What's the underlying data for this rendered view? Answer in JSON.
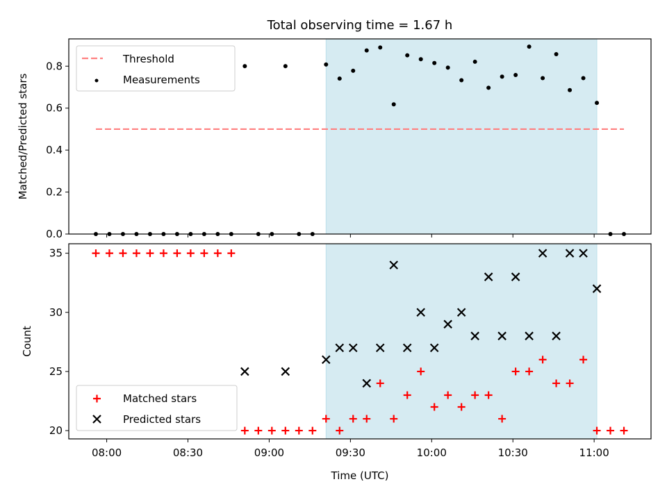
{
  "chart_data": [
    {
      "type": "scatter",
      "title": "Total observing time = 1.67 h",
      "xlabel": "",
      "ylabel": "Matched/Predicted stars",
      "ylim": [
        0,
        0.93
      ],
      "yticks": [
        "0.0",
        "0.2",
        "0.4",
        "0.6",
        "0.8"
      ],
      "shaded_span": [
        "09:21",
        "11:01"
      ],
      "threshold": {
        "name": "Threshold",
        "value": 0.5,
        "x_range": [
          "07:56",
          "11:11"
        ],
        "color": "#ff7f7f"
      },
      "series": [
        {
          "name": "Measurements",
          "color": "#000000",
          "marker": "dot",
          "x": [
            "07:56",
            "08:01",
            "08:06",
            "08:11",
            "08:16",
            "08:21",
            "08:26",
            "08:31",
            "08:36",
            "08:41",
            "08:46",
            "08:51",
            "08:56",
            "09:01",
            "09:06",
            "09:11",
            "09:16",
            "09:21",
            "09:26",
            "09:31",
            "09:36",
            "09:41",
            "09:46",
            "09:51",
            "09:56",
            "10:01",
            "10:06",
            "10:11",
            "10:16",
            "10:21",
            "10:26",
            "10:31",
            "10:36",
            "10:41",
            "10:46",
            "10:51",
            "10:56",
            "11:01",
            "11:06",
            "11:11"
          ],
          "y": [
            0,
            0,
            0,
            0,
            0,
            0,
            0,
            0,
            0,
            0,
            0,
            0.8,
            0,
            0,
            0.8,
            0,
            0,
            0.808,
            0.741,
            0.778,
            0.875,
            0.889,
            0.618,
            0.852,
            0.833,
            0.815,
            0.793,
            0.733,
            0.821,
            0.697,
            0.75,
            0.758,
            0.893,
            0.743,
            0.857,
            0.686,
            0.743,
            0.625,
            0,
            0
          ]
        }
      ]
    },
    {
      "type": "scatter",
      "xlabel": "Time (UTC)",
      "ylabel": "Count",
      "ylim": [
        19.3,
        35.8
      ],
      "yticks": [
        "20",
        "25",
        "30",
        "35"
      ],
      "xticks": [
        "08:00",
        "08:30",
        "09:00",
        "09:30",
        "10:00",
        "10:30",
        "11:00"
      ],
      "xlim": [
        "07:46",
        "11:21"
      ],
      "shaded_span": [
        "09:21",
        "11:01"
      ],
      "shade_color": "#add8e6",
      "series": [
        {
          "name": "Matched stars",
          "color": "#ff0000",
          "marker": "plus",
          "x": [
            "07:56",
            "08:01",
            "08:06",
            "08:11",
            "08:16",
            "08:21",
            "08:26",
            "08:31",
            "08:36",
            "08:41",
            "08:46",
            "08:51",
            "08:56",
            "09:01",
            "09:06",
            "09:11",
            "09:16",
            "09:21",
            "09:26",
            "09:31",
            "09:36",
            "09:41",
            "09:46",
            "09:51",
            "09:56",
            "10:01",
            "10:06",
            "10:11",
            "10:16",
            "10:21",
            "10:26",
            "10:31",
            "10:36",
            "10:41",
            "10:46",
            "10:51",
            "10:56",
            "11:01",
            "11:06",
            "11:11"
          ],
          "y": [
            35,
            35,
            35,
            35,
            35,
            35,
            35,
            35,
            35,
            35,
            35,
            20,
            20,
            20,
            20,
            20,
            20,
            21,
            20,
            21,
            21,
            24,
            21,
            23,
            25,
            22,
            23,
            22,
            23,
            23,
            21,
            25,
            25,
            26,
            24,
            24,
            26,
            20,
            20,
            20
          ]
        },
        {
          "name": "Predicted stars",
          "color": "#000000",
          "marker": "x",
          "x": [
            "08:51",
            "09:06",
            "09:21",
            "09:26",
            "09:31",
            "09:36",
            "09:41",
            "09:46",
            "09:51",
            "09:56",
            "10:01",
            "10:06",
            "10:11",
            "10:16",
            "10:21",
            "10:26",
            "10:31",
            "10:36",
            "10:41",
            "10:46",
            "10:51",
            "10:56",
            "11:01"
          ],
          "y": [
            25,
            25,
            26,
            27,
            27,
            24,
            27,
            34,
            27,
            30,
            27,
            29,
            30,
            28,
            33,
            28,
            33,
            28,
            35,
            28,
            35,
            35,
            32
          ]
        }
      ]
    }
  ]
}
